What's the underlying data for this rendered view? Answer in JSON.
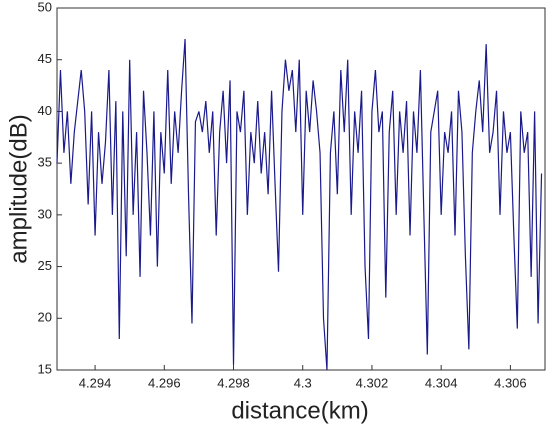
{
  "chart_data": {
    "type": "line",
    "xlabel": "distance(km)",
    "ylabel": "amplitude(dB)",
    "xlim": [
      4.2929,
      4.307
    ],
    "ylim": [
      15,
      50
    ],
    "xticks": [
      4.294,
      4.296,
      4.298,
      4.3,
      4.302,
      4.304,
      4.306
    ],
    "yticks": [
      15,
      20,
      25,
      30,
      35,
      40,
      45,
      50
    ],
    "series": [
      {
        "color": "#1a1a8c",
        "x": [
          4.2929,
          4.293,
          4.2931,
          4.2932,
          4.2933,
          4.2934,
          4.2935,
          4.2936,
          4.2937,
          4.2938,
          4.2939,
          4.294,
          4.2941,
          4.2942,
          4.2943,
          4.2944,
          4.2945,
          4.2946,
          4.2947,
          4.2948,
          4.2949,
          4.295,
          4.2951,
          4.2952,
          4.2953,
          4.2954,
          4.2955,
          4.2956,
          4.2957,
          4.2958,
          4.2959,
          4.296,
          4.2961,
          4.2962,
          4.2963,
          4.2964,
          4.2965,
          4.2966,
          4.2967,
          4.2968,
          4.2969,
          4.297,
          4.2971,
          4.2972,
          4.2973,
          4.2974,
          4.2975,
          4.2976,
          4.2977,
          4.2978,
          4.2979,
          4.298,
          4.2981,
          4.2982,
          4.2983,
          4.2984,
          4.2985,
          4.2986,
          4.2987,
          4.2988,
          4.2989,
          4.299,
          4.2991,
          4.2992,
          4.2993,
          4.2994,
          4.2995,
          4.2996,
          4.2997,
          4.2998,
          4.2999,
          4.3,
          4.3001,
          4.3002,
          4.3003,
          4.3004,
          4.3005,
          4.3006,
          4.3007,
          4.3008,
          4.3009,
          4.301,
          4.3011,
          4.3012,
          4.3013,
          4.3014,
          4.3015,
          4.3016,
          4.3017,
          4.3018,
          4.3019,
          4.302,
          4.3021,
          4.3022,
          4.3023,
          4.3024,
          4.3025,
          4.3026,
          4.3027,
          4.3028,
          4.3029,
          4.303,
          4.3031,
          4.3032,
          4.3033,
          4.3034,
          4.3035,
          4.3036,
          4.3037,
          4.3038,
          4.3039,
          4.304,
          4.3041,
          4.3042,
          4.3043,
          4.3044,
          4.3045,
          4.3046,
          4.3047,
          4.3048,
          4.3049,
          4.305,
          4.3051,
          4.3052,
          4.3053,
          4.3054,
          4.3055,
          4.3056,
          4.3057,
          4.3058,
          4.3059,
          4.306,
          4.3061,
          4.3062,
          4.3063,
          4.3064,
          4.3065,
          4.3066,
          4.3067,
          4.3068,
          4.3069
        ],
        "values": [
          35,
          44,
          36,
          40,
          33,
          38,
          41,
          44,
          40,
          31,
          40,
          28,
          38,
          33,
          37,
          44,
          30,
          41,
          18,
          40,
          26,
          45,
          30,
          38,
          24,
          42,
          36,
          28,
          40,
          25,
          38,
          34,
          44,
          33,
          40,
          36,
          42,
          47,
          32,
          19.5,
          39,
          40,
          38,
          41,
          36,
          40,
          28,
          38,
          42,
          35,
          43,
          15.5,
          40,
          38,
          42,
          30,
          38,
          35,
          41,
          34,
          38,
          32,
          42,
          33,
          24.5,
          40,
          45,
          42,
          44,
          38,
          45,
          30,
          42,
          38,
          43,
          40,
          36,
          20,
          15,
          36,
          40,
          32,
          44,
          38,
          45,
          30,
          40,
          36,
          42,
          25,
          18,
          40,
          44,
          38,
          40,
          22,
          38,
          42,
          30,
          40,
          36,
          41,
          28,
          40,
          36,
          44,
          30,
          16.5,
          38,
          40,
          42,
          30,
          38,
          36,
          40,
          28,
          42,
          38,
          26,
          17,
          36,
          40,
          43,
          38,
          46.5,
          36,
          38,
          42,
          30,
          40,
          36,
          38,
          28,
          19,
          40,
          36,
          38,
          24,
          40,
          19.5,
          34
        ]
      }
    ]
  }
}
